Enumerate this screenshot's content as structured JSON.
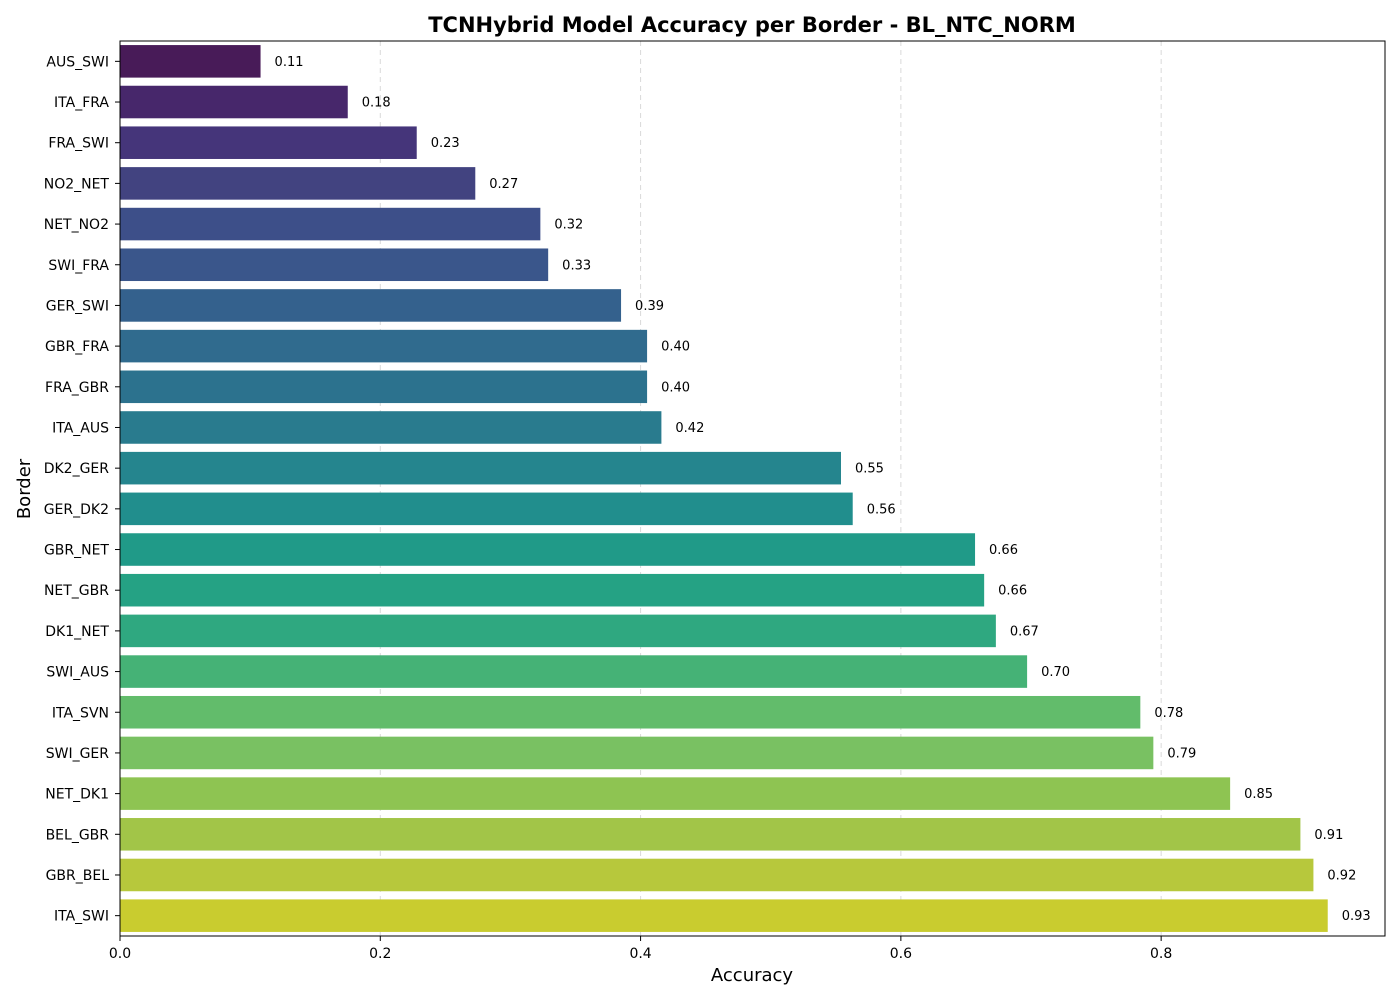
{
  "chart_data": {
    "type": "bar",
    "orientation": "horizontal",
    "title": "TCNHybrid Model Accuracy per Border - BL_NTC_NORM",
    "xlabel": "Accuracy",
    "ylabel": "Border",
    "xlim": [
      0,
      0.972
    ],
    "xticks": [
      "0.0",
      "0.2",
      "0.4",
      "0.6",
      "0.8"
    ],
    "grid": "vertical dashed",
    "colormap": "viridis",
    "categories": [
      "AUS_SWI",
      "ITA_FRA",
      "FRA_SWI",
      "NO2_NET",
      "NET_NO2",
      "SWI_FRA",
      "GER_SWI",
      "GBR_FRA",
      "FRA_GBR",
      "ITA_AUS",
      "DK2_GER",
      "GER_DK2",
      "GBR_NET",
      "NET_GBR",
      "DK1_NET",
      "SWI_AUS",
      "ITA_SVN",
      "SWI_GER",
      "NET_DK1",
      "BEL_GBR",
      "GBR_BEL",
      "ITA_SWI"
    ],
    "values": [
      0.108,
      0.175,
      0.228,
      0.273,
      0.323,
      0.329,
      0.385,
      0.405,
      0.405,
      0.416,
      0.554,
      0.563,
      0.657,
      0.664,
      0.673,
      0.697,
      0.784,
      0.794,
      0.853,
      0.907,
      0.917,
      0.928
    ],
    "labels": [
      "0.11",
      "0.18",
      "0.23",
      "0.27",
      "0.32",
      "0.33",
      "0.39",
      "0.40",
      "0.40",
      "0.42",
      "0.55",
      "0.56",
      "0.66",
      "0.66",
      "0.67",
      "0.70",
      "0.78",
      "0.79",
      "0.85",
      "0.91",
      "0.92",
      "0.93"
    ],
    "colors": [
      "#481b58",
      "#47276b",
      "#45357a",
      "#424380",
      "#3d4f89",
      "#3a568b",
      "#34618d",
      "#306b8e",
      "#2c728e",
      "#297b8e",
      "#25858e",
      "#218e8d",
      "#209a88",
      "#25a284",
      "#2fa880",
      "#45b276",
      "#62bc6b",
      "#79c162",
      "#8ec452",
      "#a2c548",
      "#b7c83c",
      "#c9cc2f"
    ]
  }
}
